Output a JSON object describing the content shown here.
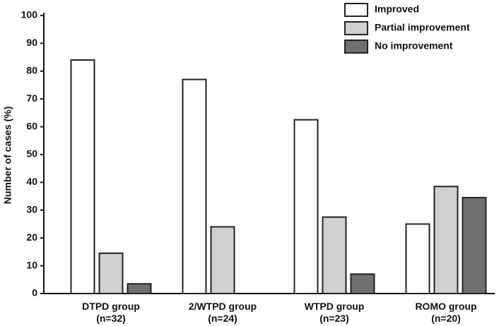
{
  "chart_data": {
    "type": "bar",
    "y_label": "Number of cases (%)",
    "categories": [
      "DTPD group\n(n=32)",
      "2/WTPD group\n(n=24)",
      "WTPD group\n(n=23)",
      "ROMO group\n(n=20)"
    ],
    "series": [
      {
        "name": "Improved",
        "color": "#ffffff",
        "values": [
          84,
          77,
          62.5,
          25
        ]
      },
      {
        "name": "Partial improvement",
        "color": "#d0d0d0",
        "values": [
          14.5,
          24,
          27.5,
          38.5
        ]
      },
      {
        "name": "No improvement",
        "color": "#707070",
        "values": [
          3.5,
          0,
          7,
          34.5
        ]
      }
    ],
    "ylim": [
      0,
      100
    ],
    "yticks": [
      0,
      10,
      20,
      30,
      40,
      50,
      60,
      70,
      80,
      90,
      100
    ],
    "grid": false,
    "legend": "top-right"
  }
}
